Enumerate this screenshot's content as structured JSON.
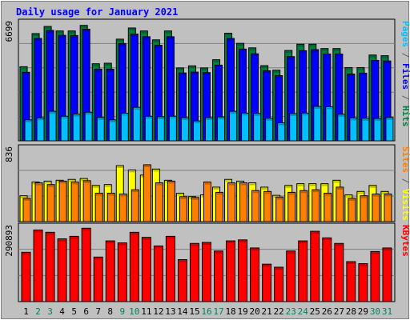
{
  "chart_data": {
    "type": "bar",
    "title": "Daily usage for January 2021",
    "x": [
      "1",
      "2",
      "3",
      "4",
      "5",
      "6",
      "7",
      "8",
      "9",
      "10",
      "11",
      "12",
      "13",
      "14",
      "15",
      "16",
      "17",
      "18",
      "19",
      "20",
      "21",
      "22",
      "23",
      "24",
      "25",
      "26",
      "27",
      "28",
      "29",
      "30",
      "31"
    ],
    "weekend_days": [
      2,
      3,
      9,
      10,
      16,
      17,
      23,
      24,
      30,
      31
    ],
    "panels": [
      {
        "name": "hits-files-pages",
        "max_label": "6699",
        "ymax": 6699,
        "side_label": [
          "Pages",
          " / ",
          "Files",
          " / ",
          "Hits"
        ],
        "side_colors": [
          "#00c0ff",
          "#606060",
          "#0000ff",
          "#606060",
          "#008040"
        ],
        "series": [
          {
            "name": "Hits",
            "color": "#008040",
            "values": [
              4250,
              6150,
              6560,
              6300,
              6300,
              6620,
              4420,
              4450,
              5830,
              6470,
              6300,
              5790,
              6300,
              4180,
              4300,
              4180,
              4650,
              6170,
              5590,
              5330,
              4310,
              4050,
              5180,
              5540,
              5540,
              5290,
              5290,
              4200,
              4200,
              4920,
              4880
            ]
          },
          {
            "name": "Files",
            "color": "#0000ff",
            "values": [
              3930,
              5870,
              6330,
              6050,
              6040,
              6400,
              4110,
              4110,
              5580,
              6120,
              5970,
              5480,
              5970,
              3890,
              3940,
              3910,
              4340,
              5870,
              5260,
              4990,
              4020,
              3740,
              4830,
              5170,
              5230,
              4980,
              4980,
              3830,
              3880,
              4610,
              4580
            ]
          },
          {
            "name": "Pages",
            "color": "#00c0ff",
            "values": [
              1200,
              1320,
              1690,
              1410,
              1530,
              1640,
              1340,
              1200,
              1580,
              1920,
              1410,
              1380,
              1410,
              1330,
              1140,
              1330,
              1370,
              1690,
              1590,
              1570,
              1290,
              1030,
              1560,
              1590,
              1970,
              1950,
              1520,
              1310,
              1290,
              1280,
              1340
            ]
          }
        ]
      },
      {
        "name": "visits-sites",
        "max_label": "836",
        "ymax": 836,
        "side_label": [
          "Sites",
          " / ",
          "Visits"
        ],
        "side_colors": [
          "#ff8000",
          "#606060",
          "#ffff00"
        ],
        "series": [
          {
            "name": "Visits",
            "color": "#ffff00",
            "values": [
              300,
              460,
              470,
              480,
              490,
              500,
              420,
              430,
              650,
              600,
              540,
              610,
              480,
              330,
              290,
              310,
              400,
              490,
              470,
              450,
              400,
              305,
              420,
              440,
              440,
              440,
              480,
              310,
              350,
              420,
              350
            ]
          },
          {
            "name": "Sites",
            "color": "#ff8000",
            "values": [
              270,
              450,
              430,
              470,
              460,
              475,
              330,
              330,
              320,
              370,
              660,
              450,
              470,
              290,
              280,
              460,
              340,
              450,
              450,
              360,
              350,
              285,
              340,
              360,
              370,
              330,
              400,
              270,
              300,
              320,
              320
            ]
          }
        ]
      },
      {
        "name": "kbytes",
        "max_label": "290893",
        "ymax": 290893,
        "side_label": [
          "KBytes"
        ],
        "side_colors": [
          "#ff0000"
        ],
        "series": [
          {
            "name": "KBytes",
            "color": "#ff0000",
            "values": [
              195000,
              283000,
              274000,
              248000,
              258000,
              290000,
              176000,
              240000,
              232000,
              274000,
              254000,
              220000,
              258000,
              166000,
              230000,
              234000,
              200000,
              240000,
              244000,
              212000,
              148000,
              136000,
              200000,
              240000,
              278000,
              252000,
              230000,
              158000,
              150000,
              198000,
              212000
            ]
          }
        ]
      }
    ]
  }
}
